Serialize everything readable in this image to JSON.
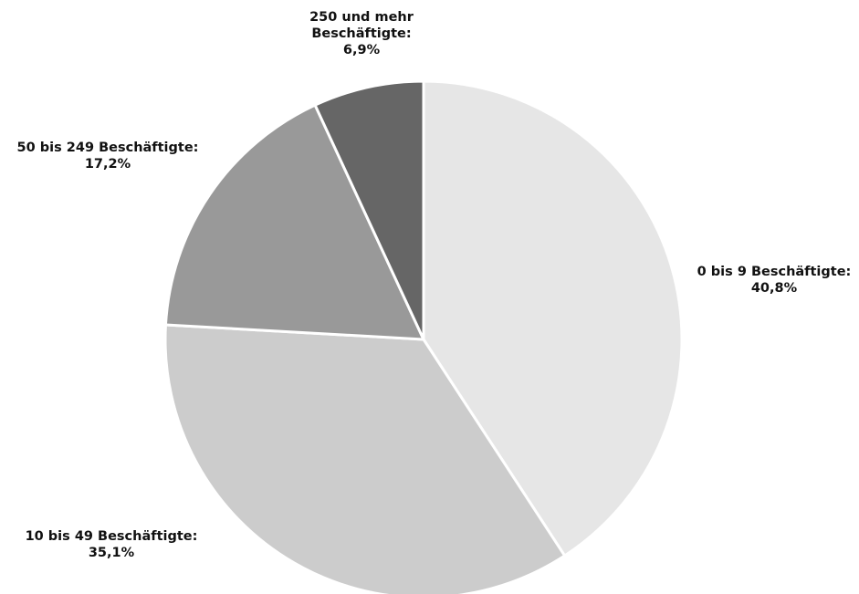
{
  "chart_data": {
    "type": "pie",
    "title": "",
    "start": "top",
    "direction": "clockwise",
    "slices": [
      {
        "category": "0 bis 9 Beschäftigte:",
        "value": 40.8,
        "value_label": "40,8%",
        "label_lines": [
          "0 bis 9 Beschäftigte:",
          "40,8%"
        ],
        "color": "#e6e6e6"
      },
      {
        "category": "10 bis 49 Beschäftigte:",
        "value": 35.1,
        "value_label": "35,1%",
        "label_lines": [
          "10 bis 49 Beschäftigte:",
          "35,1%"
        ],
        "color": "#cccccc"
      },
      {
        "category": "50 bis 249 Beschäftigte:",
        "value": 17.2,
        "value_label": "17,2%",
        "label_lines": [
          "50 bis 249 Beschäftigte:",
          "17,2%"
        ],
        "color": "#999999"
      },
      {
        "category": "250 und mehr Beschäftigte:",
        "value": 6.9,
        "value_label": "6,9%",
        "label_lines": [
          "250 und mehr",
          "Beschäftigte:",
          "6,9%"
        ],
        "color": "#666666"
      }
    ]
  }
}
